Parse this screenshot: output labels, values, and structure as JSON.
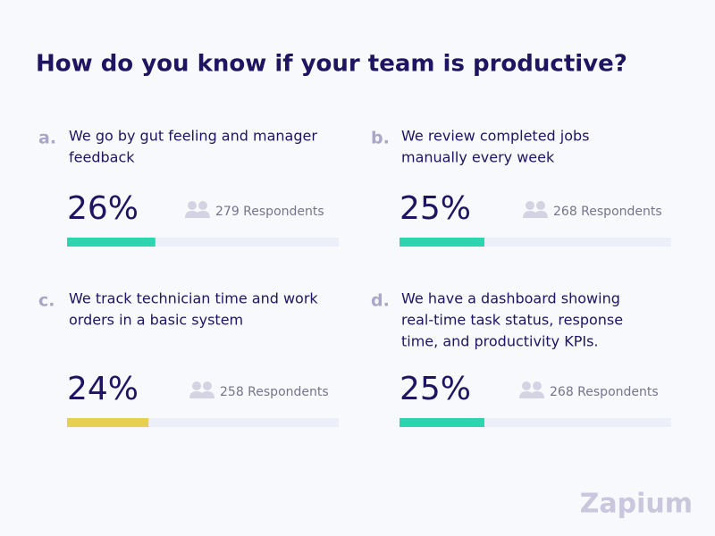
{
  "title": "How do you know if your team is productive?",
  "xlim": [
    0,
    80
  ],
  "options": [
    {
      "letter": "a.",
      "lines": [
        "We go by gut feeling and manager",
        "feedback"
      ],
      "percent": {
        "value": 26,
        "label": "26%"
      },
      "respondents": "279 Respondents",
      "color": "#2dd4b0"
    },
    {
      "letter": "b.",
      "lines": [
        "We review completed jobs",
        "manually every week"
      ],
      "percent": {
        "value": 25,
        "label": "25%"
      },
      "respondents": "268 Respondents",
      "color": "#2dd4b0"
    },
    {
      "letter": "c.",
      "lines": [
        "We track technician time and work",
        "orders in a basic system"
      ],
      "percent": {
        "value": 24,
        "label": "24%"
      },
      "respondents": "258 Respondents",
      "color": "#e6d04e"
    },
    {
      "letter": "d.",
      "lines": [
        "We have a dashboard showing",
        "real-time task status, response",
        "time, and productivity KPIs."
      ],
      "percent": {
        "value": 25,
        "label": "25%"
      },
      "respondents": "268 Respondents",
      "color": "#2dd4b0"
    }
  ],
  "logo": "Zapium"
}
